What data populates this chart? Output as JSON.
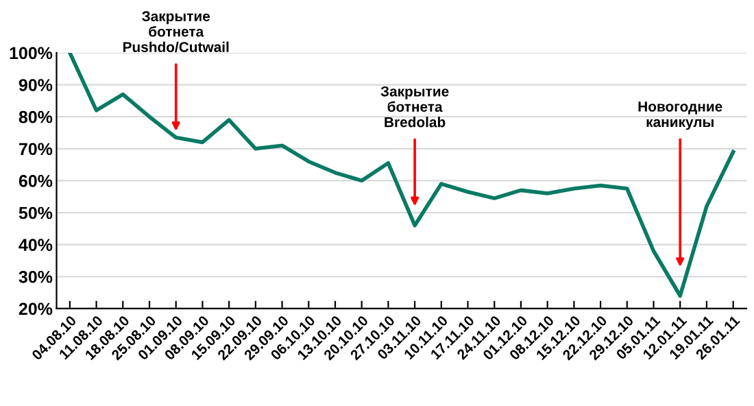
{
  "chart_data": {
    "type": "line",
    "categories": [
      "04.08.10",
      "11.08.10",
      "18.08.10",
      "25.08.10",
      "01.09.10",
      "08.09.10",
      "15.09.10",
      "22.09.10",
      "29.09.10",
      "06.10.10",
      "13.10.10",
      "20.10.10",
      "27.10.10",
      "03.11.10",
      "10.11.10",
      "17.11.10",
      "24.11.10",
      "01.12.10",
      "08.12.10",
      "15.12.10",
      "22.12.10",
      "29.12.10",
      "05.01.11",
      "12.01.11",
      "19.01.11",
      "26.01.11"
    ],
    "series": [
      {
        "color": "#0a7a64",
        "values": [
          100,
          82,
          87,
          80,
          73.5,
          72,
          79,
          70,
          71,
          66,
          62.5,
          60,
          65.5,
          46,
          59,
          56.5,
          54.5,
          57,
          56,
          57.5,
          58.5,
          57.5,
          38,
          24,
          52,
          69
        ]
      }
    ],
    "ylim": [
      20,
      100
    ],
    "yticks": [
      {
        "value": 20,
        "label": "20%"
      },
      {
        "value": 30,
        "label": "30%"
      },
      {
        "value": 40,
        "label": "40%"
      },
      {
        "value": 50,
        "label": "50%"
      },
      {
        "value": 60,
        "label": "60%"
      },
      {
        "value": 70,
        "label": "70%"
      },
      {
        "value": 80,
        "label": "80%"
      },
      {
        "value": 90,
        "label": "90%"
      },
      {
        "value": 100,
        "label": "100%"
      }
    ],
    "grid": "y",
    "marker": "none",
    "line_style": "solid",
    "annotations": [
      {
        "text": "Закрытие\nботнета\nPushdo/Cutwail",
        "x": "01.09.10",
        "y": 75.5
      },
      {
        "text": "Закрытие\nботнета\nBredolab",
        "x": "03.11.10",
        "y": 52
      },
      {
        "text": "Новогодние\nканикулы",
        "x": "12.01.11",
        "y": 33
      }
    ]
  }
}
